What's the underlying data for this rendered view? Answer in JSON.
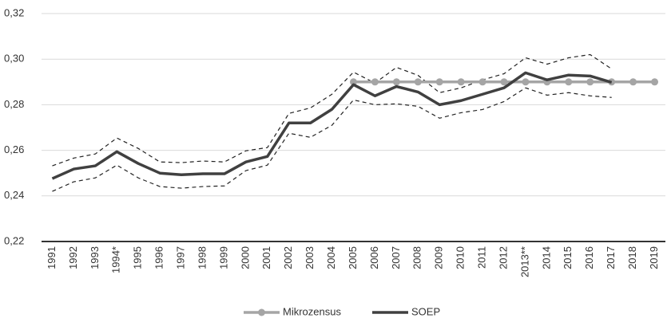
{
  "chart_data": {
    "type": "line",
    "categories": [
      "1991",
      "1992",
      "1993",
      "1994*",
      "1995",
      "1996",
      "1997",
      "1998",
      "1999",
      "2000",
      "2001",
      "2002",
      "2003",
      "2004",
      "2005",
      "2006",
      "2007",
      "2008",
      "2009",
      "2010",
      "2011",
      "2012",
      "2013**",
      "2014",
      "2015",
      "2016",
      "2017",
      "2018",
      "2019"
    ],
    "series": [
      {
        "color": "#222222",
        "dashed": true,
        "width": 1.2,
        "values": [
          0.2532,
          0.2566,
          0.2584,
          0.2654,
          0.2608,
          0.2549,
          0.2546,
          0.2553,
          0.2549,
          0.2598,
          0.2612,
          0.2762,
          0.2786,
          0.2846,
          0.2943,
          0.2895,
          0.2964,
          0.2929,
          0.2853,
          0.2874,
          0.2909,
          0.2936,
          0.3006,
          0.2978,
          0.3006,
          0.302,
          0.2957,
          null,
          null
        ]
      },
      {
        "color": "#222222",
        "dashed": true,
        "width": 1.2,
        "values": [
          0.242,
          0.2462,
          0.2479,
          0.2535,
          0.2479,
          0.2441,
          0.2434,
          0.2441,
          0.2444,
          0.2511,
          0.2535,
          0.2675,
          0.2657,
          0.271,
          0.2821,
          0.28,
          0.2804,
          0.2793,
          0.2741,
          0.2765,
          0.2779,
          0.2814,
          0.2874,
          0.2842,
          0.2853,
          0.2839,
          0.2832,
          null,
          null
        ]
      },
      {
        "name": "Mikrozensus",
        "color": "#a5a5a5",
        "width": 3.5,
        "marker": true,
        "values": [
          null,
          null,
          null,
          null,
          null,
          null,
          null,
          null,
          null,
          null,
          null,
          null,
          null,
          null,
          0.29,
          0.29,
          0.29,
          0.29,
          0.29,
          0.29,
          0.29,
          0.29,
          0.29,
          0.29,
          0.29,
          0.29,
          0.29,
          0.29,
          0.29
        ]
      },
      {
        "name": "SOEP",
        "color": "#404040",
        "width": 3.5,
        "values": [
          0.2476,
          0.2518,
          0.2532,
          0.2594,
          0.2542,
          0.25,
          0.2493,
          0.2497,
          0.2497,
          0.2549,
          0.2573,
          0.272,
          0.272,
          0.278,
          0.2888,
          0.2839,
          0.288,
          0.2856,
          0.28,
          0.2818,
          0.2846,
          0.2874,
          0.294,
          0.2909,
          0.293,
          0.2926,
          0.2898,
          null,
          null
        ]
      }
    ],
    "ylim": [
      0.22,
      0.32
    ],
    "yticks": [
      {
        "value": 0.22,
        "label": "0,22"
      },
      {
        "value": 0.24,
        "label": "0,24"
      },
      {
        "value": 0.26,
        "label": "0,26"
      },
      {
        "value": 0.28,
        "label": "0,28"
      },
      {
        "value": 0.3,
        "label": "0,30"
      },
      {
        "value": 0.32,
        "label": "0,32"
      }
    ],
    "grid": true,
    "legend": "bottom"
  }
}
